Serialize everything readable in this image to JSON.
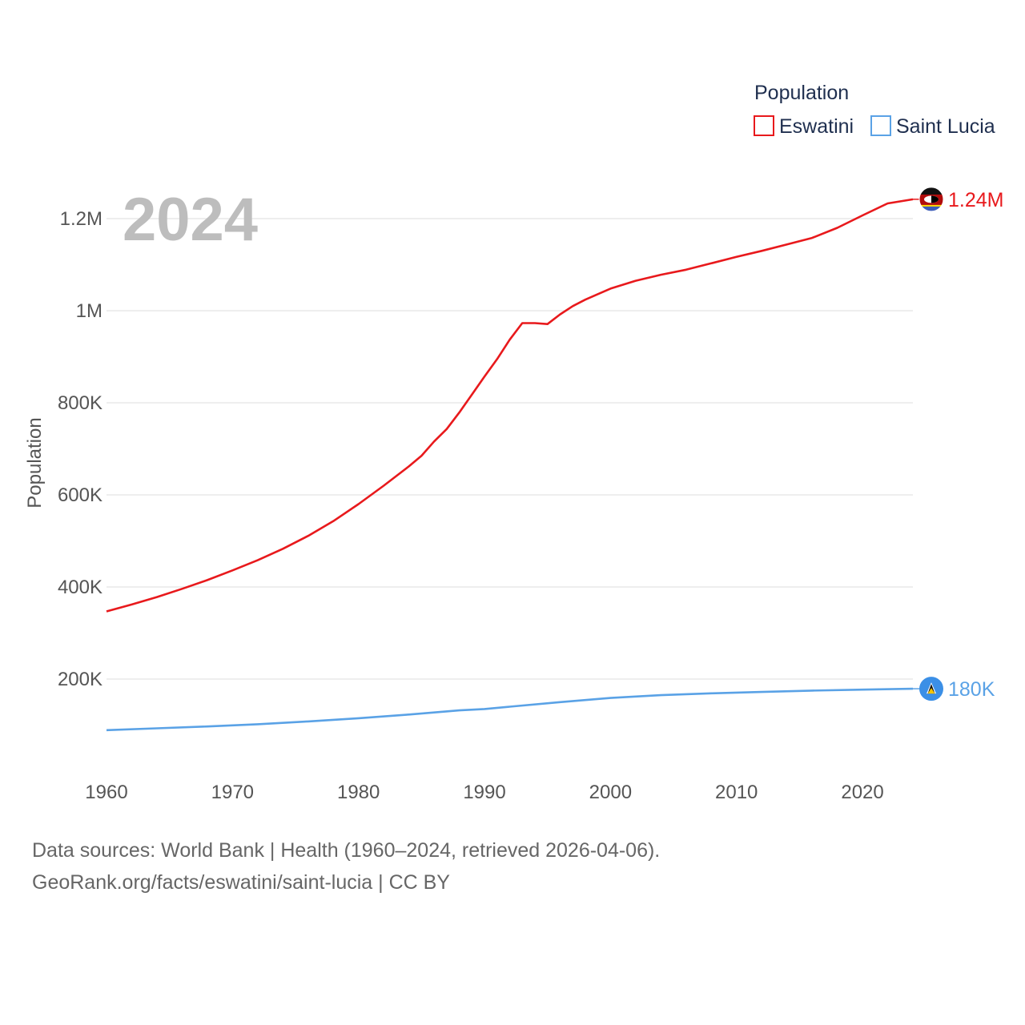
{
  "colors": {
    "eswatini": "#e8191c",
    "saint_lucia": "#5aa2e6",
    "grid": "#e8e8e8"
  },
  "year_label": "2024",
  "legend": {
    "title": "Population",
    "items": [
      "Eswatini",
      "Saint Lucia"
    ]
  },
  "end_labels": {
    "eswatini": "1.24M",
    "saint_lucia": "180K"
  },
  "flags": {
    "eswatini": "eswatini-flag-icon",
    "saint_lucia": "saint-lucia-flag-icon"
  },
  "footer": {
    "line1": "Data sources: World Bank | Health (1960–2024, retrieved 2026-04-06).",
    "line2": "GeoRank.org/facts/eswatini/saint-lucia | CC BY"
  },
  "chart_data": {
    "type": "line",
    "title": "Population",
    "xlabel": "",
    "ylabel": "Population",
    "xlim": [
      1960,
      2024
    ],
    "ylim": [
      0,
      1300000
    ],
    "x_ticks": [
      1960,
      1970,
      1980,
      1990,
      2000,
      2010,
      2020
    ],
    "x_tick_labels": [
      "1960",
      "1970",
      "1980",
      "1990",
      "2000",
      "2010",
      "2020"
    ],
    "y_ticks": [
      200000,
      400000,
      600000,
      800000,
      1000000,
      1200000
    ],
    "y_tick_labels": [
      "200K",
      "400K",
      "600K",
      "800K",
      "1M",
      "1.2M"
    ],
    "grid": true,
    "legend_position": "top-right",
    "series": [
      {
        "name": "Eswatini",
        "points": [
          [
            1960,
            347000
          ],
          [
            1962,
            362000
          ],
          [
            1964,
            378000
          ],
          [
            1966,
            396000
          ],
          [
            1968,
            415000
          ],
          [
            1970,
            436000
          ],
          [
            1972,
            458000
          ],
          [
            1974,
            483000
          ],
          [
            1976,
            511000
          ],
          [
            1978,
            543000
          ],
          [
            1980,
            580000
          ],
          [
            1982,
            620000
          ],
          [
            1984,
            662000
          ],
          [
            1985,
            685000
          ],
          [
            1986,
            716000
          ],
          [
            1987,
            743000
          ],
          [
            1988,
            779000
          ],
          [
            1989,
            818000
          ],
          [
            1990,
            857000
          ],
          [
            1991,
            895000
          ],
          [
            1992,
            937000
          ],
          [
            1993,
            973000
          ],
          [
            1994,
            973000
          ],
          [
            1995,
            971000
          ],
          [
            1996,
            992000
          ],
          [
            1997,
            1010000
          ],
          [
            1998,
            1024000
          ],
          [
            1999,
            1036000
          ],
          [
            2000,
            1048000
          ],
          [
            2002,
            1065000
          ],
          [
            2004,
            1078000
          ],
          [
            2006,
            1089000
          ],
          [
            2008,
            1103000
          ],
          [
            2010,
            1117000
          ],
          [
            2012,
            1130000
          ],
          [
            2014,
            1144000
          ],
          [
            2016,
            1158000
          ],
          [
            2018,
            1180000
          ],
          [
            2020,
            1207000
          ],
          [
            2022,
            1233000
          ],
          [
            2024,
            1242000
          ]
        ]
      },
      {
        "name": "Saint Lucia",
        "points": [
          [
            1960,
            89000
          ],
          [
            1964,
            93000
          ],
          [
            1968,
            97000
          ],
          [
            1972,
            102000
          ],
          [
            1976,
            108000
          ],
          [
            1980,
            115000
          ],
          [
            1984,
            123000
          ],
          [
            1988,
            132000
          ],
          [
            1990,
            135000
          ],
          [
            1992,
            140000
          ],
          [
            1996,
            150000
          ],
          [
            2000,
            159000
          ],
          [
            2004,
            165000
          ],
          [
            2008,
            169000
          ],
          [
            2012,
            172000
          ],
          [
            2016,
            175000
          ],
          [
            2020,
            177000
          ],
          [
            2024,
            179000
          ]
        ]
      }
    ]
  }
}
